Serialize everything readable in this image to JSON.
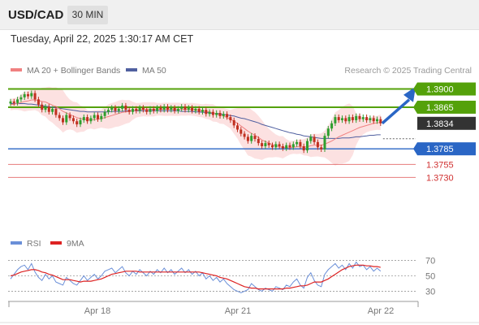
{
  "header": {
    "symbol": "USD/CAD",
    "timeframe": "30 MIN"
  },
  "timestamp": "Tuesday, April 22, 2025 1:30:17 AM CET",
  "credit": "Research © 2025 Trading Central",
  "legend": {
    "ma20": "MA 20 + Bollinger Bands",
    "ma50": "MA 50",
    "rsi": "RSI",
    "rsi_ma": "9MA"
  },
  "colors": {
    "resistance": "#54a10a",
    "support": "#2a66c5",
    "extra_support": "#e05a5a",
    "current": "#333333",
    "bull": "#2e9e2e",
    "bear": "#c03020",
    "ma20": "#f08080",
    "ma50": "#5060a0",
    "bands": "#fbd9d9",
    "rsi": "#6a8fd8",
    "rsi_ma": "#dd2222"
  },
  "chart_data": [
    {
      "type": "candlestick",
      "ylim": [
        1.3715,
        1.3918
      ],
      "x_ticks": [
        "Apr 18",
        "Apr 21",
        "Apr 22"
      ],
      "levels": [
        {
          "label": "1.3900",
          "value": 1.39,
          "kind": "resistance"
        },
        {
          "label": "1.3865",
          "value": 1.3865,
          "kind": "resistance"
        },
        {
          "label": "1.3834",
          "value": 1.3834,
          "kind": "current"
        },
        {
          "label": "1.3785",
          "value": 1.3785,
          "kind": "support"
        },
        {
          "label": "1.3755",
          "value": 1.3755,
          "kind": "extra_support"
        },
        {
          "label": "1.3730",
          "value": 1.373,
          "kind": "extra_support"
        }
      ],
      "close": [
        1.3876,
        1.3873,
        1.388,
        1.3884,
        1.389,
        1.3886,
        1.3892,
        1.388,
        1.387,
        1.386,
        1.3866,
        1.3856,
        1.3862,
        1.385,
        1.3844,
        1.3836,
        1.385,
        1.3844,
        1.3838,
        1.3832,
        1.384,
        1.3846,
        1.3838,
        1.3844,
        1.385,
        1.3842,
        1.3848,
        1.3856,
        1.386,
        1.3864,
        1.3858,
        1.3862,
        1.3868,
        1.386,
        1.3856,
        1.3862,
        1.3858,
        1.3864,
        1.386,
        1.3856,
        1.3862,
        1.3858,
        1.3864,
        1.386,
        1.3866,
        1.386,
        1.3864,
        1.3858,
        1.3862,
        1.3866,
        1.386,
        1.3864,
        1.3858,
        1.3862,
        1.3856,
        1.386,
        1.3852,
        1.3856,
        1.385,
        1.3854,
        1.3848,
        1.3852,
        1.3846,
        1.384,
        1.383,
        1.3822,
        1.3814,
        1.3808,
        1.38,
        1.381,
        1.3804,
        1.3796,
        1.379,
        1.3796,
        1.3792,
        1.3788,
        1.3794,
        1.379,
        1.3786,
        1.3792,
        1.3788,
        1.3794,
        1.3798,
        1.379,
        1.3782,
        1.38,
        1.3808,
        1.3798,
        1.3788,
        1.3784,
        1.381,
        1.3824,
        1.3834,
        1.3846,
        1.384,
        1.3844,
        1.3838,
        1.3846,
        1.384,
        1.3848,
        1.3842,
        1.3846,
        1.384,
        1.3844,
        1.3838,
        1.3842,
        1.3834
      ],
      "ma20": [
        1.387,
        1.3871,
        1.3872,
        1.3874,
        1.3876,
        1.3877,
        1.3879,
        1.3879,
        1.3878,
        1.3876,
        1.3875,
        1.3872,
        1.3869,
        1.3866,
        1.3862,
        1.3857,
        1.3854,
        1.3851,
        1.3848,
        1.3845,
        1.3843,
        1.3842,
        1.3841,
        1.3841,
        1.3841,
        1.3842,
        1.3843,
        1.3845,
        1.3847,
        1.3849,
        1.3851,
        1.3853,
        1.3855,
        1.3856,
        1.3857,
        1.3858,
        1.3859,
        1.386,
        1.3861,
        1.3861,
        1.3861,
        1.3861,
        1.3861,
        1.3861,
        1.3861,
        1.3861,
        1.3861,
        1.3861,
        1.3861,
        1.3861,
        1.3861,
        1.3861,
        1.3861,
        1.386,
        1.3859,
        1.3858,
        1.3857,
        1.3856,
        1.3854,
        1.3852,
        1.385,
        1.3848,
        1.3845,
        1.3842,
        1.3838,
        1.3834,
        1.3829,
        1.3824,
        1.3819,
        1.3815,
        1.3811,
        1.3807,
        1.3802,
        1.3799,
        1.3796,
        1.3793,
        1.3791,
        1.3789,
        1.3788,
        1.3787,
        1.3787,
        1.3788,
        1.3789,
        1.3789,
        1.3788,
        1.3789,
        1.3791,
        1.3792,
        1.3792,
        1.3792,
        1.3794,
        1.3797,
        1.38,
        1.3804,
        1.3808,
        1.3811,
        1.3814,
        1.3817,
        1.382,
        1.3823,
        1.3826,
        1.3828,
        1.383,
        1.3832,
        1.3834,
        1.3835,
        1.3836
      ],
      "ma50": [
        1.3872,
        1.3872,
        1.3872,
        1.3872,
        1.3872,
        1.3871,
        1.3871,
        1.387,
        1.3869,
        1.3868,
        1.3867,
        1.3866,
        1.3865,
        1.3864,
        1.3863,
        1.3862,
        1.3861,
        1.386,
        1.3859,
        1.3858,
        1.3857,
        1.3857,
        1.3856,
        1.3856,
        1.3856,
        1.3856,
        1.3856,
        1.3856,
        1.3856,
        1.3857,
        1.3857,
        1.3857,
        1.3857,
        1.3858,
        1.3858,
        1.3858,
        1.3858,
        1.3858,
        1.3858,
        1.3858,
        1.3858,
        1.3858,
        1.3858,
        1.3858,
        1.3858,
        1.3858,
        1.3858,
        1.3858,
        1.3858,
        1.3857,
        1.3857,
        1.3857,
        1.3857,
        1.3856,
        1.3856,
        1.3855,
        1.3855,
        1.3854,
        1.3853,
        1.3853,
        1.3852,
        1.3851,
        1.385,
        1.3849,
        1.3848,
        1.3846,
        1.3844,
        1.3843,
        1.3841,
        1.3839,
        1.3837,
        1.3835,
        1.3832,
        1.383,
        1.3828,
        1.3826,
        1.3824,
        1.3822,
        1.382,
        1.3818,
        1.3816,
        1.3815,
        1.3813,
        1.3812,
        1.381,
        1.3809,
        1.3808,
        1.3807,
        1.3806,
        1.3805,
        1.3805,
        1.3805,
        1.3805,
        1.3805,
        1.3805,
        1.3806,
        1.3806,
        1.3806,
        1.3807,
        1.3808,
        1.3808,
        1.3809,
        1.381,
        1.3811,
        1.3811,
        1.3812,
        1.3812
      ]
    },
    {
      "type": "line",
      "ylim": [
        22,
        78
      ],
      "y_ticks": [
        30,
        50,
        70
      ],
      "rsi": [
        46,
        52,
        58,
        62,
        64,
        58,
        66,
        55,
        48,
        44,
        52,
        46,
        50,
        42,
        40,
        38,
        48,
        44,
        40,
        38,
        44,
        50,
        44,
        48,
        52,
        46,
        50,
        56,
        58,
        60,
        54,
        58,
        62,
        54,
        50,
        56,
        52,
        58,
        54,
        50,
        56,
        52,
        58,
        54,
        60,
        54,
        58,
        52,
        56,
        60,
        54,
        58,
        52,
        56,
        50,
        54,
        46,
        50,
        44,
        48,
        42,
        46,
        40,
        36,
        32,
        30,
        28,
        30,
        32,
        40,
        36,
        32,
        30,
        34,
        32,
        30,
        36,
        34,
        32,
        38,
        36,
        42,
        46,
        38,
        34,
        48,
        54,
        44,
        38,
        36,
        52,
        58,
        62,
        66,
        60,
        64,
        58,
        66,
        60,
        68,
        62,
        64,
        58,
        62,
        56,
        60,
        56
      ],
      "rsi_ma": [
        50,
        51,
        53,
        55,
        56,
        57,
        58,
        58,
        57,
        55,
        54,
        52,
        51,
        49,
        47,
        45,
        45,
        45,
        44,
        43,
        42,
        43,
        43,
        43,
        44,
        45,
        46,
        48,
        50,
        52,
        53,
        54,
        55,
        56,
        56,
        56,
        56,
        55,
        55,
        55,
        55,
        55,
        55,
        55,
        55,
        55,
        55,
        55,
        55,
        55,
        55,
        55,
        55,
        55,
        55,
        54,
        53,
        52,
        51,
        50,
        48,
        47,
        46,
        44,
        42,
        40,
        38,
        36,
        35,
        34,
        34,
        33,
        33,
        33,
        33,
        33,
        33,
        33,
        33,
        34,
        34,
        35,
        36,
        37,
        37,
        38,
        40,
        42,
        42,
        42,
        44,
        46,
        49,
        52,
        55,
        58,
        60,
        62,
        63,
        64,
        64,
        64,
        63,
        63,
        62,
        62,
        61
      ]
    }
  ]
}
